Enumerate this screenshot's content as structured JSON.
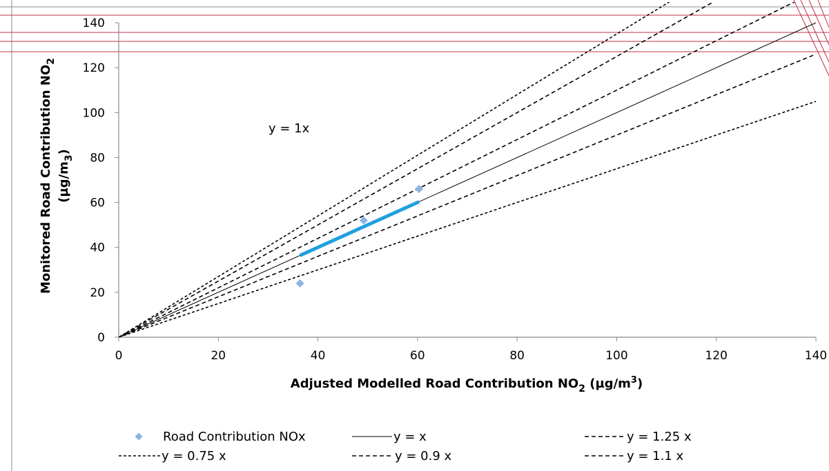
{
  "chart_data": {
    "type": "scatter",
    "title": "",
    "xlabel": "Adjusted Modelled Road Contribution NO",
    "xlabel_sub": "2",
    "xlabel_tail": " (µg/m",
    "xlabel_sup": "3",
    "xlabel_end": ")",
    "ylabel_line1": "Monitored Road Contribution NO",
    "ylabel_line1_sub": "2",
    "ylabel_line2": "(µg/m",
    "ylabel_line2_sub": "3",
    "ylabel_line2_end": ")",
    "xlim": [
      0,
      140
    ],
    "ylim": [
      0,
      140
    ],
    "x_ticks": [
      0,
      20,
      40,
      60,
      80,
      100,
      120,
      140
    ],
    "y_ticks": [
      0,
      20,
      40,
      60,
      80,
      100,
      120,
      140
    ],
    "grid": false,
    "annotation": "y = 1x",
    "series": [
      {
        "name": "Road Contribution NOx",
        "kind": "points",
        "color": "#8db4e2",
        "x": [
          36.4,
          49.2,
          60.3
        ],
        "y": [
          24,
          52,
          66
        ]
      },
      {
        "name": "y = x",
        "kind": "line",
        "slope": 1,
        "dash": "solid"
      },
      {
        "name": "y = 1.25 x",
        "kind": "line",
        "slope": 1.25,
        "dash": "dash"
      },
      {
        "name": "y = 0.75 x",
        "kind": "line",
        "slope": 0.75,
        "dash": "dot"
      },
      {
        "name": "y = 0.9 x",
        "kind": "line",
        "slope": 0.9,
        "dash": "dash"
      },
      {
        "name": "y = 1.1 x",
        "kind": "line",
        "slope": 1.1,
        "dash": "dash"
      },
      {
        "name": "",
        "kind": "trend",
        "color": "#1ea0e0",
        "slope": 1,
        "x_range": [
          36.4,
          60.3
        ]
      },
      {
        "name": "",
        "kind": "line",
        "slope": 1.35,
        "dash": "dot"
      }
    ]
  },
  "legend": {
    "entries": [
      {
        "label": "Road Contribution NOx"
      },
      {
        "label": "y = x"
      },
      {
        "label": "y = 1.25 x"
      },
      {
        "label": "y = 0.75 x"
      },
      {
        "label": "y = 0.9 x"
      },
      {
        "label": "y = 1.1 x"
      }
    ]
  },
  "colors": {
    "axis": "#8c8c8c",
    "line": "#000000",
    "points": "#8db4e2",
    "trend": "#1ea0e0",
    "artifact": "#c0304a"
  }
}
